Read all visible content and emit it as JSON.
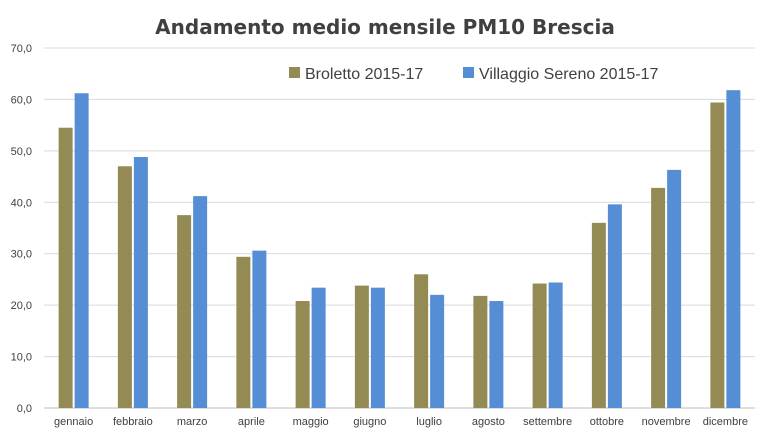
{
  "chart_data": {
    "type": "bar",
    "title": "Andamento medio mensile PM10 Brescia",
    "xlabel": "",
    "ylabel": "",
    "ylim": [
      0,
      70
    ],
    "yticks": [
      "0,0",
      "10,0",
      "20,0",
      "30,0",
      "40,0",
      "50,0",
      "60,0",
      "70,0"
    ],
    "grid": true,
    "legend_position": "top-right",
    "categories": [
      "gennaio",
      "febbraio",
      "marzo",
      "aprile",
      "maggio",
      "giugno",
      "luglio",
      "agosto",
      "settembre",
      "ottobre",
      "novembre",
      "dicembre"
    ],
    "series": [
      {
        "name": "Broletto 2015-17",
        "color": "#948a54",
        "values": [
          54.5,
          47.0,
          37.5,
          29.4,
          20.8,
          23.8,
          26.0,
          21.8,
          24.2,
          36.0,
          42.8,
          59.4
        ]
      },
      {
        "name": "Villaggio Sereno 2015-17",
        "color": "#558ed5",
        "values": [
          61.2,
          48.8,
          41.2,
          30.6,
          23.4,
          23.4,
          22.0,
          20.8,
          24.4,
          39.6,
          46.3,
          61.8
        ]
      }
    ]
  }
}
